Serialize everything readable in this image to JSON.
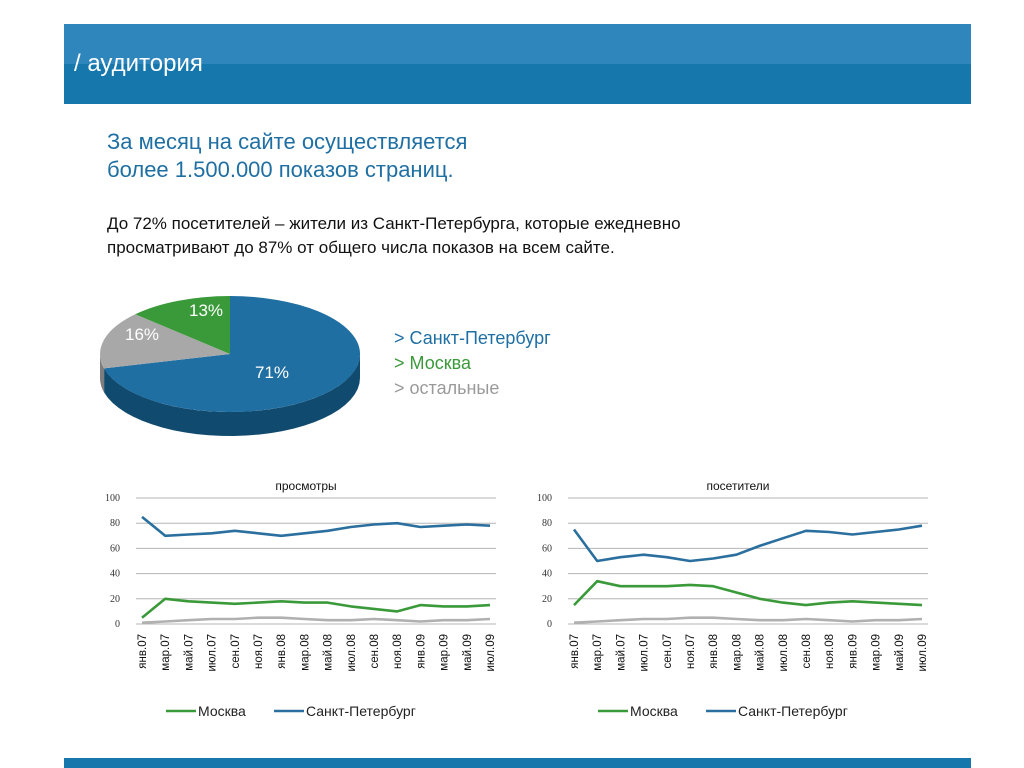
{
  "header": {
    "title": "/ аудитория"
  },
  "headline": {
    "line1": "За месяц на сайте осуществляется",
    "line2": "более 1.500.000 показов страниц."
  },
  "body": {
    "line1": "До 72% посетителей – жители из Санкт-Петербурга, которые ежедневно",
    "line2": "просматривают до 87% от общего числа показов на всем сайте."
  },
  "pie_legend": {
    "spb": "> Санкт-Петербург",
    "msk": "> Москва",
    "other": "> остальные"
  },
  "colors": {
    "spb": "#1f6fa3",
    "msk": "#3a9a3a",
    "other": "#a8a8a8",
    "header": "#1677ad"
  },
  "chart_data": [
    {
      "type": "pie",
      "categories": [
        "Санкт-Петербург",
        "Москва",
        "остальные"
      ],
      "values": [
        71,
        13,
        16
      ],
      "labels": [
        "71%",
        "13%",
        "16%"
      ]
    },
    {
      "type": "line",
      "title": "просмотры",
      "ylim": [
        0,
        100
      ],
      "yticks": [
        "0",
        "20",
        "40",
        "60",
        "80",
        "100"
      ],
      "categories": [
        "янв.07",
        "мар.07",
        "май.07",
        "июл.07",
        "сен.07",
        "ноя.07",
        "янв.08",
        "мар.08",
        "май.08",
        "июл.08",
        "сен.08",
        "ноя.08",
        "янв.09",
        "мар.09",
        "май.09",
        "июл.09"
      ],
      "grid": true,
      "legend": "bottom",
      "series": [
        {
          "name": "Москва",
          "color": "#3a9a3a",
          "values": [
            5,
            20,
            18,
            17,
            16,
            17,
            18,
            17,
            17,
            14,
            12,
            10,
            15,
            14,
            14,
            15
          ]
        },
        {
          "name": "Санкт-Петербург",
          "color": "#2a6f9e",
          "values": [
            85,
            70,
            71,
            72,
            74,
            72,
            70,
            72,
            74,
            77,
            79,
            80,
            77,
            78,
            79,
            78
          ]
        },
        {
          "color": "#b0b0b0",
          "values": [
            1,
            2,
            3,
            4,
            4,
            5,
            5,
            4,
            3,
            3,
            4,
            3,
            2,
            3,
            3,
            4
          ]
        }
      ]
    },
    {
      "type": "line",
      "title": "посетители",
      "ylim": [
        0,
        100
      ],
      "yticks": [
        "0",
        "20",
        "40",
        "60",
        "80",
        "100"
      ],
      "categories": [
        "янв.07",
        "мар.07",
        "май.07",
        "июл.07",
        "сен.07",
        "ноя.07",
        "янв.08",
        "мар.08",
        "май.08",
        "июл.08",
        "сен.08",
        "ноя.08",
        "янв.09",
        "мар.09",
        "май.09",
        "июл.09"
      ],
      "grid": true,
      "legend": "bottom",
      "series": [
        {
          "name": "Москва",
          "color": "#3a9a3a",
          "values": [
            15,
            34,
            30,
            30,
            30,
            31,
            30,
            25,
            20,
            17,
            15,
            17,
            18,
            17,
            16,
            15
          ]
        },
        {
          "name": "Санкт-Петербург",
          "color": "#2a6f9e",
          "values": [
            75,
            50,
            53,
            55,
            53,
            50,
            52,
            55,
            62,
            68,
            74,
            73,
            71,
            73,
            75,
            78
          ]
        },
        {
          "color": "#b0b0b0",
          "values": [
            1,
            2,
            3,
            4,
            4,
            5,
            5,
            4,
            3,
            3,
            4,
            3,
            2,
            3,
            3,
            4
          ]
        }
      ]
    }
  ],
  "chart_legend": {
    "msk": "Москва",
    "spb": "Санкт-Петербург"
  }
}
